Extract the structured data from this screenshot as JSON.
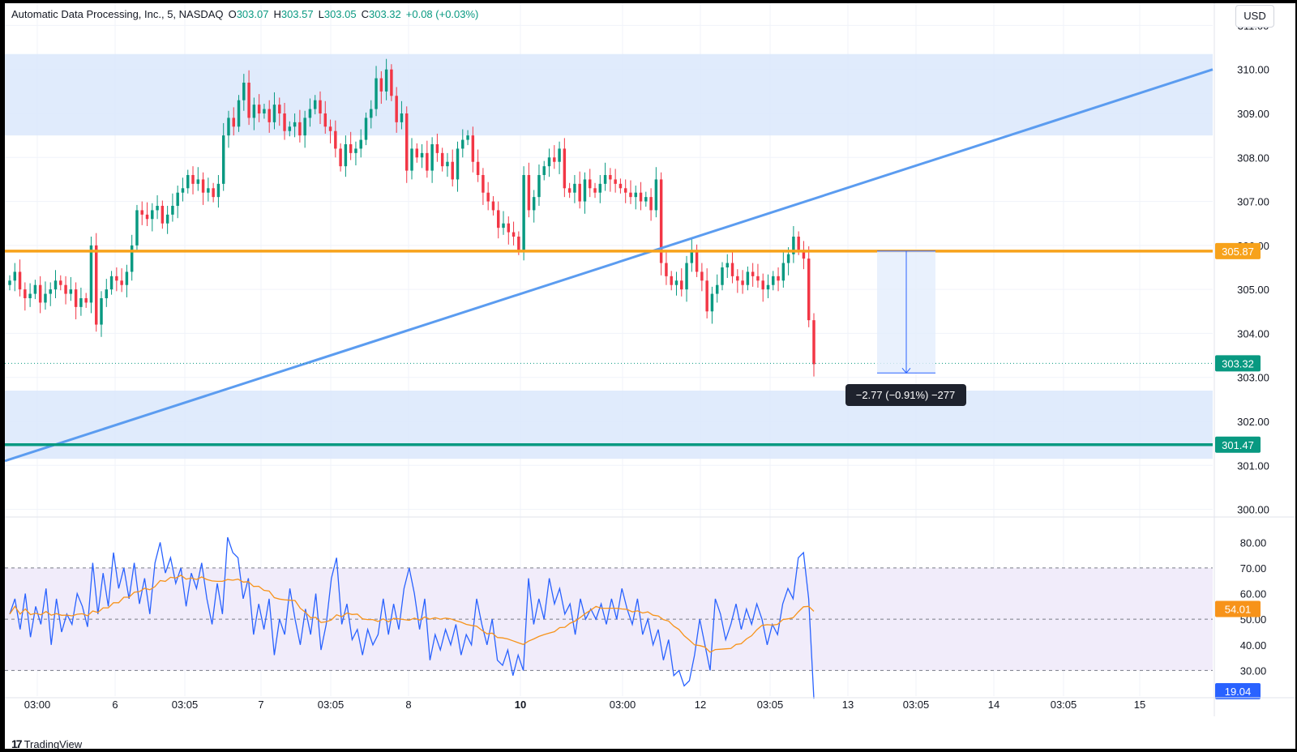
{
  "header": {
    "symbol": "Automatic Data Processing, Inc., 5, NASDAQ",
    "open_label": "O",
    "open": "303.07",
    "high_label": "H",
    "high": "303.57",
    "low_label": "L",
    "low": "303.05",
    "close_label": "C",
    "close": "303.32",
    "change": "+0.08 (+0.03%)"
  },
  "currency": "USD",
  "branding": "TradingView",
  "measure_label": "−2.77 (−0.91%) −277",
  "colors": {
    "up": "#089981",
    "down": "#f23645",
    "trendline": "#5b9cf0",
    "zone": "#dbe8fb",
    "orange_level": "#f7a21b",
    "green_level": "#089981",
    "rsi_line": "#2962ff",
    "rsi_ma": "#f7931a",
    "rsi_band": "#f1ecfa",
    "price_label": "#089981",
    "rsi_label": "#2962ff"
  },
  "chart_data": [
    {
      "type": "candlestick",
      "x_ticks": [
        "03:00",
        "6",
        "03:05",
        "7",
        "03:05",
        "8",
        "10",
        "03:00",
        "12",
        "03:05",
        "13",
        "03:05",
        "14",
        "03:05",
        "15"
      ],
      "x_ticks_bold": [
        "10"
      ],
      "y_ticks": [
        "311.00",
        "310.00",
        "309.00",
        "308.00",
        "307.00",
        "306.00",
        "305.00",
        "304.00",
        "303.00",
        "302.00",
        "301.00",
        "300.00"
      ],
      "ylim": [
        299.9,
        311.1
      ],
      "grid": true,
      "zones": [
        {
          "from": 308.5,
          "to": 310.35
        },
        {
          "from": 301.15,
          "to": 302.7
        }
      ],
      "horizontal_levels": [
        {
          "value": 305.87,
          "label": "305.87",
          "color": "orange"
        },
        {
          "value": 301.47,
          "label": "301.47",
          "color": "green"
        }
      ],
      "last_price": {
        "value": 303.32,
        "label": "303.32"
      },
      "trendline": {
        "from": 301.1,
        "to": 310.0
      },
      "measure": {
        "from": 305.87,
        "to": 303.1,
        "change": -2.77,
        "change_pct": -0.91,
        "ticks": -277
      },
      "close_series": [
        305.2,
        305.4,
        305.0,
        304.8,
        304.9,
        305.1,
        304.7,
        304.9,
        305.0,
        305.2,
        305.1,
        304.9,
        305.0,
        304.6,
        304.8,
        304.7,
        306.0,
        304.2,
        304.8,
        305.0,
        305.3,
        305.2,
        305.1,
        305.4,
        306.0,
        306.8,
        306.7,
        306.6,
        306.8,
        306.9,
        306.5,
        306.7,
        306.9,
        307.2,
        307.3,
        307.6,
        307.4,
        307.5,
        307.2,
        307.3,
        307.1,
        307.4,
        308.5,
        308.9,
        308.7,
        309.3,
        309.7,
        308.9,
        309.2,
        309.0,
        309.1,
        308.8,
        309.2,
        309.0,
        308.6,
        308.7,
        308.8,
        308.5,
        308.9,
        309.1,
        309.3,
        309.0,
        308.7,
        308.6,
        308.2,
        307.8,
        308.3,
        308.1,
        308.2,
        308.4,
        308.9,
        309.1,
        309.8,
        309.5,
        310.0,
        309.4,
        308.8,
        309.0,
        307.7,
        308.2,
        308.0,
        308.1,
        307.7,
        308.3,
        308.1,
        307.8,
        307.9,
        307.5,
        308.2,
        308.4,
        308.5,
        307.9,
        307.6,
        307.2,
        307.0,
        306.8,
        306.4,
        306.5,
        306.3,
        306.2,
        305.9,
        307.6,
        306.8,
        307.1,
        307.6,
        307.8,
        308.0,
        307.9,
        308.2,
        307.3,
        307.2,
        307.4,
        307.0,
        307.5,
        307.3,
        307.2,
        307.4,
        307.6,
        307.5,
        307.4,
        307.3,
        307.2,
        307.1,
        307.2,
        307.0,
        307.1,
        306.8,
        307.5,
        305.6,
        305.3,
        305.1,
        305.2,
        305.0,
        305.6,
        305.9,
        305.4,
        305.2,
        304.5,
        304.9,
        305.1,
        305.5,
        305.6,
        305.3,
        305.2,
        305.1,
        305.4,
        305.3,
        305.2,
        305.0,
        305.1,
        305.3,
        305.2,
        305.6,
        305.8,
        306.2,
        305.9,
        305.7,
        304.3,
        303.3
      ]
    },
    {
      "type": "line",
      "name": "RSI",
      "y_ticks": [
        "80.00",
        "70.00",
        "60.00",
        "50.00",
        "40.00",
        "30.00"
      ],
      "ylim": [
        20,
        88
      ],
      "bands": [
        30,
        50,
        70
      ],
      "labels": {
        "ma": "54.01",
        "rsi": "19.04"
      },
      "rsi": [
        52,
        58,
        46,
        60,
        43,
        55,
        48,
        62,
        40,
        58,
        45,
        52,
        48,
        60,
        55,
        47,
        72,
        52,
        68,
        55,
        76,
        62,
        70,
        58,
        72,
        56,
        66,
        52,
        72,
        80,
        68,
        74,
        64,
        70,
        55,
        68,
        62,
        72,
        58,
        48,
        64,
        52,
        82,
        76,
        74,
        58,
        66,
        44,
        56,
        46,
        58,
        36,
        50,
        44,
        62,
        50,
        40,
        54,
        44,
        60,
        38,
        48,
        66,
        74,
        48,
        56,
        42,
        46,
        36,
        46,
        40,
        44,
        58,
        44,
        56,
        46,
        62,
        70,
        60,
        46,
        58,
        34,
        44,
        38,
        46,
        40,
        48,
        36,
        44,
        40,
        58,
        48,
        40,
        50,
        34,
        32,
        38,
        28,
        36,
        30,
        66,
        48,
        58,
        50,
        66,
        56,
        62,
        52,
        56,
        44,
        58,
        50,
        54,
        50,
        56,
        48,
        58,
        50,
        62,
        54,
        48,
        58,
        44,
        50,
        40,
        46,
        34,
        42,
        28,
        30,
        24,
        26,
        36,
        50,
        40,
        30,
        58,
        52,
        42,
        48,
        56,
        46,
        54,
        48,
        56,
        50,
        40,
        48,
        44,
        56,
        62,
        58,
        74,
        76,
        58,
        19
      ]
    }
  ]
}
